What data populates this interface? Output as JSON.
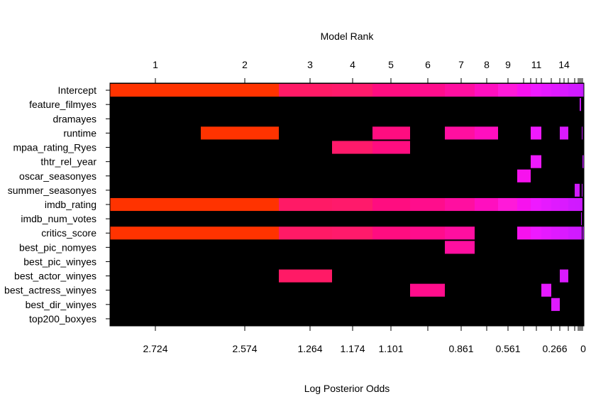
{
  "chart_data": {
    "type": "heatmap",
    "title": "Model Rank",
    "xlabel": "Log Posterior Odds",
    "rows": [
      "Intercept",
      "feature_filmyes",
      "dramayes",
      "runtime",
      "mpaa_rating_Ryes",
      "thtr_rel_year",
      "oscar_seasonyes",
      "summer_seasonyes",
      "imdb_rating",
      "imdb_num_votes",
      "critics_score",
      "best_pic_nomyes",
      "best_pic_winyes",
      "best_actor_winyes",
      "best_actress_winyes",
      "best_dir_winyes",
      "top200_boxyes"
    ],
    "top_axis": {
      "ticks": [
        "1",
        "2",
        "3",
        "4",
        "5",
        "6",
        "7",
        "8",
        "9",
        "11",
        "14"
      ]
    },
    "bottom_axis": {
      "labels": [
        "2.724",
        "2.574",
        "1.264",
        "1.174",
        "1.101",
        "0.861",
        "0.561",
        "0.266",
        "0"
      ]
    },
    "models": [
      {
        "rank": 1,
        "vars": [
          "Intercept",
          "imdb_rating",
          "critics_score"
        ],
        "color": "#ff3300"
      },
      {
        "rank": 2,
        "vars": [
          "Intercept",
          "runtime",
          "imdb_rating",
          "critics_score"
        ],
        "color": "#ff3300"
      },
      {
        "rank": 3,
        "vars": [
          "Intercept",
          "imdb_rating",
          "critics_score",
          "best_actor_winyes"
        ],
        "color": "#ff1a66"
      },
      {
        "rank": 4,
        "vars": [
          "Intercept",
          "mpaa_rating_Ryes",
          "imdb_rating",
          "critics_score"
        ],
        "color": "#ff1a6b"
      },
      {
        "rank": 5,
        "vars": [
          "Intercept",
          "runtime",
          "mpaa_rating_Ryes",
          "imdb_rating",
          "critics_score"
        ],
        "color": "#ff0d80"
      },
      {
        "rank": 6,
        "vars": [
          "Intercept",
          "imdb_rating",
          "critics_score",
          "best_actress_winyes"
        ],
        "color": "#ff0d8c"
      },
      {
        "rank": 7,
        "vars": [
          "Intercept",
          "runtime",
          "imdb_rating",
          "critics_score",
          "best_pic_nomyes"
        ],
        "color": "#ff0fa0"
      },
      {
        "rank": 8,
        "vars": [
          "Intercept",
          "runtime",
          "imdb_rating"
        ],
        "color": "#ff0fbf"
      },
      {
        "rank": 9,
        "vars": [
          "Intercept",
          "imdb_rating"
        ],
        "color": "#ff1ad9"
      },
      {
        "rank": 10,
        "vars": [
          "Intercept",
          "oscar_seasonyes",
          "imdb_rating",
          "critics_score"
        ],
        "color": "#f712ee"
      },
      {
        "rank": 11,
        "vars": [
          "Intercept",
          "runtime",
          "thtr_rel_year",
          "imdb_rating",
          "critics_score"
        ],
        "color": "#ee1aff"
      },
      {
        "rank": 12,
        "vars": [
          "Intercept",
          "imdb_rating",
          "critics_score",
          "best_actress_winyes"
        ],
        "color": "#e61aff"
      },
      {
        "rank": 13,
        "vars": [
          "Intercept",
          "imdb_rating",
          "critics_score",
          "best_dir_winyes"
        ],
        "color": "#df1aff"
      },
      {
        "rank": 14,
        "vars": [
          "Intercept",
          "runtime",
          "imdb_rating",
          "critics_score",
          "best_actor_winyes"
        ],
        "color": "#da1aff"
      },
      {
        "rank": 15,
        "vars": [
          "Intercept",
          "imdb_rating",
          "critics_score"
        ],
        "color": "#d11aff"
      },
      {
        "rank": 16,
        "vars": [
          "Intercept",
          "summer_seasonyes",
          "imdb_rating",
          "critics_score"
        ],
        "color": "#d01aff"
      },
      {
        "rank": 17,
        "vars": [
          "Intercept",
          "feature_filmyes",
          "imdb_rating",
          "critics_score"
        ],
        "color": "#cc1aff"
      },
      {
        "rank": 18,
        "vars": [
          "Intercept",
          "imdb_num_votes",
          "imdb_rating",
          "critics_score"
        ],
        "color": "#c81aff"
      },
      {
        "rank": 19,
        "vars": [
          "Intercept",
          "runtime",
          "summer_seasonyes",
          "imdb_rating"
        ],
        "color": "#c41aff"
      },
      {
        "rank": 20,
        "vars": [
          "Intercept",
          "thtr_rel_year",
          "critics_score"
        ],
        "color": "#bf1aff"
      }
    ],
    "background_color": "#000000"
  }
}
